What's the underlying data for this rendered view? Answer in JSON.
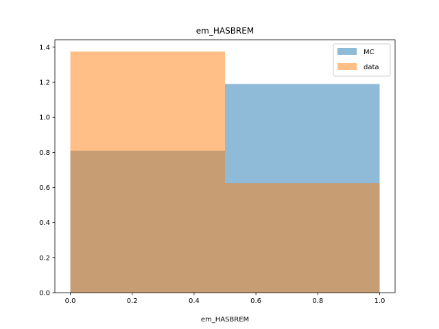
{
  "chart_data": {
    "type": "histogram",
    "title": "em_HASBREM",
    "xlabel": "em_HASBREM",
    "ylabel": "",
    "xlim": [
      -0.05,
      1.05
    ],
    "ylim": [
      0,
      1.4425
    ],
    "xticks": [
      "0.0",
      "0.2",
      "0.4",
      "0.6",
      "0.8",
      "1.0"
    ],
    "yticks": [
      "0.0",
      "0.2",
      "0.4",
      "0.6",
      "0.8",
      "1.0",
      "1.2",
      "1.4"
    ],
    "bin_edges": [
      0.0,
      0.5,
      1.0
    ],
    "series": [
      {
        "name": "MC",
        "values": [
          0.81,
          1.19
        ],
        "color": "#1f77b4",
        "alpha": 0.5
      },
      {
        "name": "data",
        "values": [
          1.375,
          0.625
        ],
        "color": "#ff7f0e",
        "alpha": 0.5
      }
    ],
    "legend_position": "top-right",
    "grid": false
  }
}
